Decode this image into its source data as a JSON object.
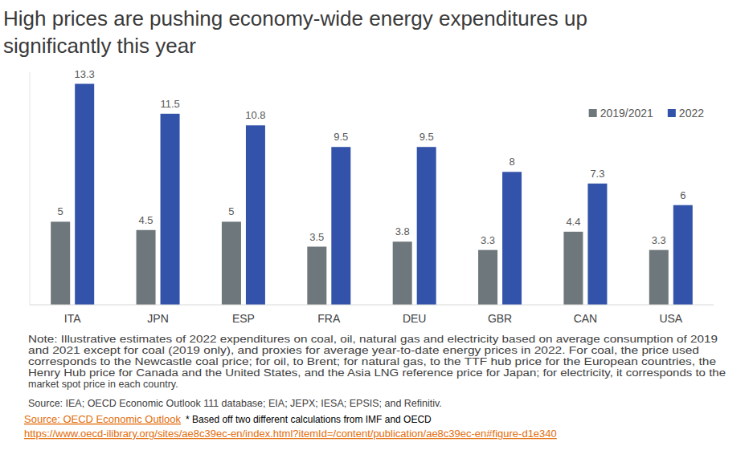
{
  "chart_data": {
    "type": "bar",
    "title": "High prices are pushing economy-wide energy expenditures up significantly this year",
    "categories": [
      "ITA",
      "JPN",
      "ESP",
      "FRA",
      "DEU",
      "GBR",
      "CAN",
      "USA"
    ],
    "series": [
      {
        "name": "2019/2021",
        "color": "#6e777b",
        "values": [
          5,
          4.5,
          5,
          3.5,
          3.8,
          3.3,
          4.4,
          3.3
        ]
      },
      {
        "name": "2022",
        "color": "#3253a9",
        "values": [
          13.3,
          11.5,
          10.8,
          9.5,
          9.5,
          8,
          7.3,
          6
        ]
      }
    ],
    "ylim": [
      0,
      14
    ],
    "grid": false,
    "legend": "top-right",
    "data_labels": true,
    "tick_labels": "x",
    "note": [
      "Note: Illustrative estimates of 2022 expenditures on coal, oil, natural gas and electricity based on average consumption of 2019",
      "and 2021 except for coal (2019 only), and proxies for average year-to-date energy prices in 2022. For coal, the price used",
      "corresponds to the Newcastle coal price; for oil, to Brent; for natural gas, to the TTF hub price for the European countries, the",
      "Henry Hub price for Canada and the United States, and the Asia LNG reference price for Japan; for electricity, it corresponds to the",
      "market spot price in each country."
    ],
    "source": "Source: IEA; OECD Economic Outlook 111 database; EIA; JEPX; IESA; EPSIS; and Refinitiv.",
    "source_link": "Source: OECD Economic Outlook",
    "footnote": "* Based off two different calculations from IMF and OECD",
    "url": "https://www.oecd-ilibrary.org/sites/ae8c39ec-en/index.html?itemId=/content/publication/ae8c39ec-en#figure-d1e340"
  }
}
